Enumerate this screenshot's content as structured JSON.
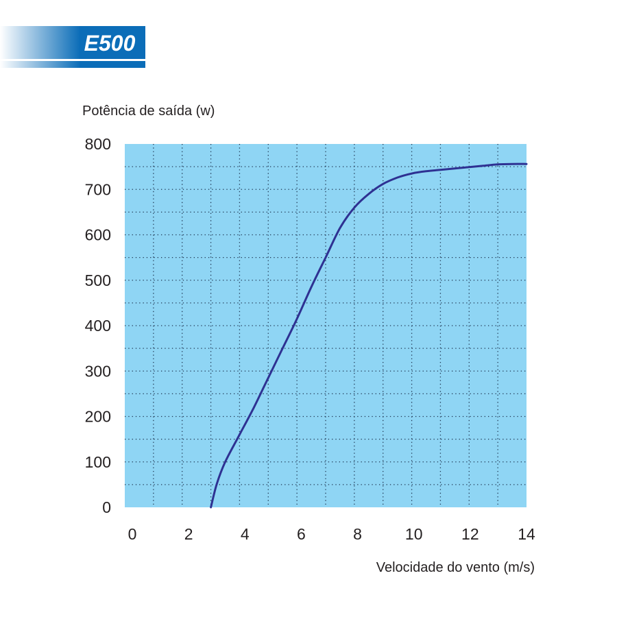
{
  "badge": {
    "label": "E500",
    "colors": {
      "dark": "#0b6db8",
      "light": "#ffffff",
      "text": "#ffffff"
    }
  },
  "chart_data": {
    "type": "line",
    "title": "",
    "xlabel": "Velocidade do vento (m/s)",
    "ylabel": "Potência de saída (w)",
    "xlim": [
      0,
      14
    ],
    "ylim": [
      0,
      800
    ],
    "x_ticks": [
      "0",
      "2",
      "4",
      "6",
      "8",
      "10",
      "12",
      "14"
    ],
    "y_ticks": [
      "0",
      "100",
      "200",
      "300",
      "400",
      "500",
      "600",
      "700",
      "800"
    ],
    "grid": true,
    "legend": "none",
    "colors": {
      "plot_bg": "#8fd5f4",
      "grid": "#1e3550",
      "line": "#2e3192"
    },
    "series": [
      {
        "x": [
          3.0,
          3.2,
          3.5,
          4.0,
          4.5,
          5.0,
          5.5,
          6.0,
          6.5,
          7.0,
          7.5,
          8.0,
          8.5,
          9.0,
          9.5,
          10.0,
          10.5,
          11.0,
          11.5,
          12.0,
          12.5,
          13.0,
          13.5,
          14.0
        ],
        "y": [
          0,
          50,
          100,
          160,
          220,
          285,
          350,
          415,
          485,
          550,
          615,
          660,
          690,
          712,
          726,
          735,
          740,
          743,
          746,
          749,
          752,
          755,
          756,
          756
        ]
      }
    ]
  }
}
